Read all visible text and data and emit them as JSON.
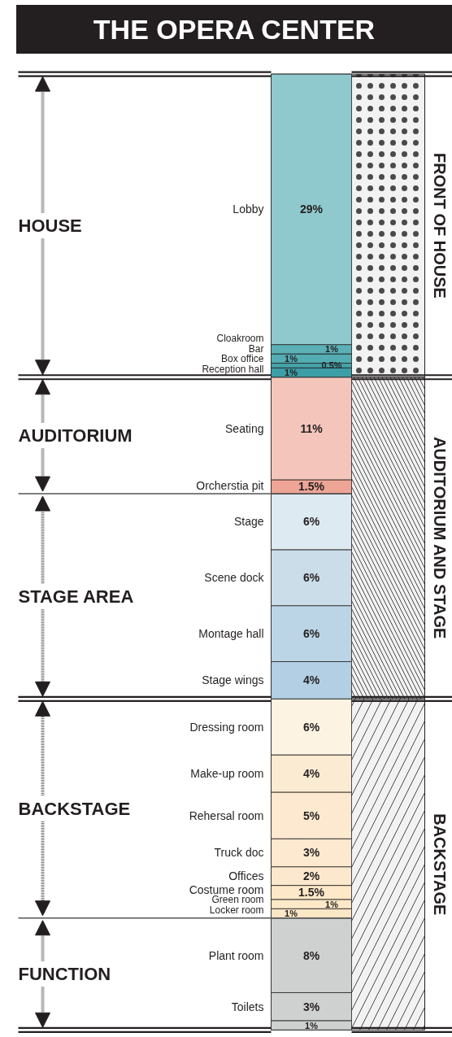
{
  "chart_data": {
    "type": "bar",
    "title": "THE OPERA CENTER",
    "stacked": true,
    "categories": [
      null
    ],
    "tick_labels": false,
    "ylim": [
      -0.8,
      104.3
    ],
    "series": [
      {
        "color": "#cfd0d0",
        "values": [
          1
        ],
        "value_labels": [
          "1%"
        ]
      },
      {
        "name": "Toilets",
        "color": "#cfd0d0",
        "values": [
          3
        ],
        "value_labels": [
          "3%"
        ]
      },
      {
        "name": "Plant room",
        "color": "#cfd0d0",
        "values": [
          8
        ],
        "value_labels": [
          "8%"
        ]
      },
      {
        "name": "Locker room",
        "color": "#fbe6c6",
        "values": [
          1
        ],
        "value_labels": [
          "1%"
        ]
      },
      {
        "name": "Green room",
        "color": "#fde8c8",
        "values": [
          1
        ],
        "value_labels": [
          "1%"
        ]
      },
      {
        "name": "Costume room",
        "color": "#fde8c8",
        "values": [
          1.5
        ],
        "value_labels": [
          "1.5%"
        ]
      },
      {
        "name": "Offices",
        "color": "#fce9cd",
        "values": [
          2
        ],
        "value_labels": [
          "2%"
        ]
      },
      {
        "name": "Truck doc",
        "color": "#fce9cf",
        "values": [
          3
        ],
        "value_labels": [
          "3%"
        ]
      },
      {
        "name": "Rehersal room",
        "color": "#fce9cf",
        "values": [
          5
        ],
        "value_labels": [
          "5%"
        ]
      },
      {
        "name": "Make-up room",
        "color": "#fcebd3",
        "values": [
          4
        ],
        "value_labels": [
          "4%"
        ]
      },
      {
        "name": "Dressing room",
        "color": "#fdf3e3",
        "values": [
          6
        ],
        "value_labels": [
          "6%"
        ]
      },
      {
        "name": "Stage wings",
        "color": "#b2cfe3",
        "values": [
          4
        ],
        "value_labels": [
          "4%"
        ]
      },
      {
        "name": "Montage hall",
        "color": "#bcd5e6",
        "values": [
          6
        ],
        "value_labels": [
          "6%"
        ]
      },
      {
        "name": "Scene dock",
        "color": "#cbdde9",
        "values": [
          6
        ],
        "value_labels": [
          "6%"
        ]
      },
      {
        "name": "Stage",
        "color": "#deeaf1",
        "values": [
          6
        ],
        "value_labels": [
          "6%"
        ]
      },
      {
        "name": "Orcherstia pit",
        "color": "#eea596",
        "values": [
          1.5
        ],
        "value_labels": [
          "1.5%"
        ]
      },
      {
        "name": "Seating",
        "color": "#f4c6bb",
        "values": [
          11
        ],
        "value_labels": [
          "11%"
        ]
      },
      {
        "name": "Reception hall",
        "color": "#3c9ea6",
        "values": [
          1
        ],
        "value_labels": [
          "1%"
        ]
      },
      {
        "name": "Box office",
        "color": "#45a4ab",
        "values": [
          0.5
        ],
        "value_labels": [
          "0.5%"
        ]
      },
      {
        "name": "Bar",
        "color": "#54adb3",
        "values": [
          1
        ],
        "value_labels": [
          "1%"
        ]
      },
      {
        "name": "Cloakroom",
        "color": "#5bb0b6",
        "values": [
          1
        ],
        "value_labels": [
          "1%"
        ]
      },
      {
        "name": "Lobby",
        "color": "#8fc9cd",
        "values": [
          29
        ],
        "value_labels": [
          "29%"
        ]
      }
    ],
    "bands": [
      {
        "axis": "y",
        "from": 0,
        "to": 35.5,
        "label": "BACKSTAGE",
        "color": "#231f20"
      },
      {
        "axis": "y",
        "from": 35.5,
        "to": 70,
        "label": "AUDITORIUM AND STAGE",
        "color": "#231f20"
      },
      {
        "axis": "y",
        "from": 70,
        "to": 102.5,
        "label": "FRONT OF HOUSE",
        "color": "#231f20"
      }
    ],
    "ref_lines": [
      {
        "axis": "y",
        "value": 12,
        "color": "#555555"
      },
      {
        "axis": "y",
        "value": 57.5,
        "color": "#555555"
      }
    ],
    "annotations": [
      "HOUSE",
      "AUDITORIUM",
      "STAGE AREA",
      "BACKSTAGE",
      "FUNCTION"
    ]
  }
}
